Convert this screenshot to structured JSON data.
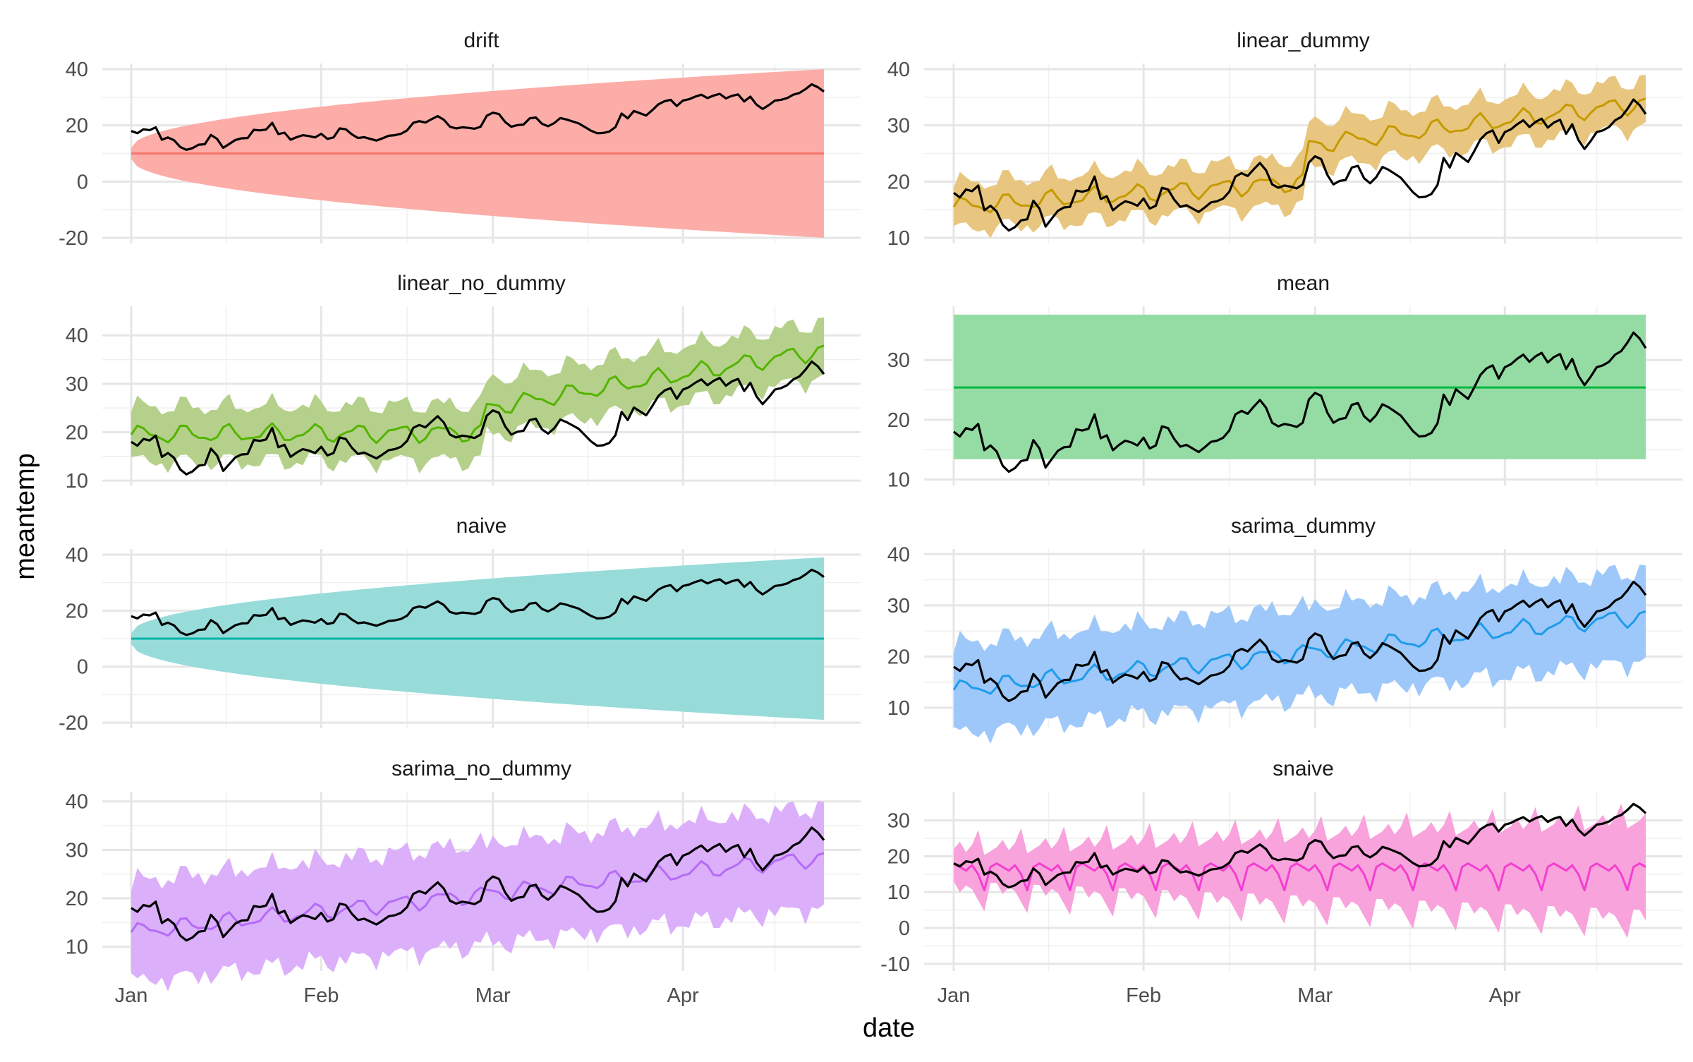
{
  "chart_data": {
    "type": "line",
    "facet_layout": "4 rows x 2 columns",
    "xlabel": "date",
    "ylabel": "meantemp",
    "x_tick_labels": [
      "Jan",
      "Feb",
      "Mar",
      "Apr"
    ],
    "x_ticks": [
      "2017-01-01",
      "2017-02-01",
      "2017-03-01",
      "2017-04-01"
    ],
    "xlim": [
      "2017-01-01",
      "2017-04-24"
    ],
    "actual_color": "#000000",
    "actual": [
      [
        "2017-01-01",
        18.0
      ],
      [
        "2017-01-02",
        17.2
      ],
      [
        "2017-01-03",
        18.6
      ],
      [
        "2017-01-04",
        18.3
      ],
      [
        "2017-01-05",
        19.3
      ],
      [
        "2017-01-06",
        14.9
      ],
      [
        "2017-01-07",
        15.7
      ],
      [
        "2017-01-08",
        14.7
      ],
      [
        "2017-01-09",
        12.3
      ],
      [
        "2017-01-10",
        11.3
      ],
      [
        "2017-01-11",
        11.9
      ],
      [
        "2017-01-12",
        13.1
      ],
      [
        "2017-01-13",
        13.3
      ],
      [
        "2017-01-14",
        16.6
      ],
      [
        "2017-01-15",
        15.2
      ],
      [
        "2017-01-16",
        12.0
      ],
      [
        "2017-01-17",
        13.4
      ],
      [
        "2017-01-18",
        14.8
      ],
      [
        "2017-01-19",
        15.4
      ],
      [
        "2017-01-20",
        15.5
      ],
      [
        "2017-01-21",
        18.4
      ],
      [
        "2017-01-22",
        18.2
      ],
      [
        "2017-01-23",
        18.5
      ],
      [
        "2017-01-24",
        20.9
      ],
      [
        "2017-01-25",
        16.9
      ],
      [
        "2017-01-26",
        17.4
      ],
      [
        "2017-01-27",
        14.9
      ],
      [
        "2017-01-28",
        15.8
      ],
      [
        "2017-01-29",
        16.5
      ],
      [
        "2017-01-30",
        16.2
      ],
      [
        "2017-01-31",
        15.7
      ],
      [
        "2017-02-01",
        17.0
      ],
      [
        "2017-02-02",
        15.2
      ],
      [
        "2017-02-03",
        15.7
      ],
      [
        "2017-02-04",
        18.9
      ],
      [
        "2017-02-05",
        18.6
      ],
      [
        "2017-02-06",
        16.8
      ],
      [
        "2017-02-07",
        15.5
      ],
      [
        "2017-02-08",
        15.8
      ],
      [
        "2017-02-09",
        15.2
      ],
      [
        "2017-02-10",
        14.6
      ],
      [
        "2017-02-11",
        15.4
      ],
      [
        "2017-02-12",
        16.3
      ],
      [
        "2017-02-13",
        16.5
      ],
      [
        "2017-02-14",
        17.0
      ],
      [
        "2017-02-15",
        18.2
      ],
      [
        "2017-02-16",
        20.9
      ],
      [
        "2017-02-17",
        21.5
      ],
      [
        "2017-02-18",
        21.0
      ],
      [
        "2017-02-19",
        22.2
      ],
      [
        "2017-02-20",
        23.3
      ],
      [
        "2017-02-21",
        22.0
      ],
      [
        "2017-02-22",
        19.5
      ],
      [
        "2017-02-23",
        18.9
      ],
      [
        "2017-02-24",
        19.3
      ],
      [
        "2017-02-25",
        19.1
      ],
      [
        "2017-02-26",
        18.8
      ],
      [
        "2017-02-27",
        19.5
      ],
      [
        "2017-02-28",
        23.4
      ],
      [
        "2017-03-01",
        24.5
      ],
      [
        "2017-03-02",
        24.0
      ],
      [
        "2017-03-03",
        21.2
      ],
      [
        "2017-03-04",
        19.5
      ],
      [
        "2017-03-05",
        20.1
      ],
      [
        "2017-03-06",
        20.3
      ],
      [
        "2017-03-07",
        22.5
      ],
      [
        "2017-03-08",
        22.8
      ],
      [
        "2017-03-09",
        20.6
      ],
      [
        "2017-03-10",
        19.7
      ],
      [
        "2017-03-11",
        20.8
      ],
      [
        "2017-03-12",
        22.6
      ],
      [
        "2017-03-13",
        22.1
      ],
      [
        "2017-03-14",
        21.4
      ],
      [
        "2017-03-15",
        20.7
      ],
      [
        "2017-03-16",
        19.4
      ],
      [
        "2017-03-17",
        18.1
      ],
      [
        "2017-03-18",
        17.2
      ],
      [
        "2017-03-19",
        17.3
      ],
      [
        "2017-03-20",
        17.8
      ],
      [
        "2017-03-21",
        19.4
      ],
      [
        "2017-03-22",
        24.2
      ],
      [
        "2017-03-23",
        22.5
      ],
      [
        "2017-03-24",
        25.1
      ],
      [
        "2017-03-25",
        24.3
      ],
      [
        "2017-03-26",
        23.5
      ],
      [
        "2017-03-27",
        25.4
      ],
      [
        "2017-03-28",
        27.5
      ],
      [
        "2017-03-29",
        28.6
      ],
      [
        "2017-03-30",
        29.1
      ],
      [
        "2017-03-31",
        26.9
      ],
      [
        "2017-04-01",
        28.8
      ],
      [
        "2017-04-02",
        29.3
      ],
      [
        "2017-04-03",
        30.2
      ],
      [
        "2017-04-04",
        30.9
      ],
      [
        "2017-04-05",
        29.7
      ],
      [
        "2017-04-06",
        30.6
      ],
      [
        "2017-04-07",
        31.2
      ],
      [
        "2017-04-08",
        29.6
      ],
      [
        "2017-04-09",
        30.5
      ],
      [
        "2017-04-10",
        31.0
      ],
      [
        "2017-04-11",
        28.5
      ],
      [
        "2017-04-12",
        30.2
      ],
      [
        "2017-04-13",
        27.4
      ],
      [
        "2017-04-14",
        25.8
      ],
      [
        "2017-04-15",
        27.2
      ],
      [
        "2017-04-16",
        28.8
      ],
      [
        "2017-04-17",
        29.1
      ],
      [
        "2017-04-18",
        29.7
      ],
      [
        "2017-04-19",
        30.9
      ],
      [
        "2017-04-20",
        31.5
      ],
      [
        "2017-04-21",
        32.9
      ],
      [
        "2017-04-22",
        34.6
      ],
      [
        "2017-04-23",
        33.6
      ],
      [
        "2017-04-24",
        32.0
      ]
    ],
    "panels": [
      {
        "name": "drift",
        "color": "#F8766D",
        "band_color": "#FCADA7",
        "ylim": [
          -22,
          42
        ],
        "y_ticks": [
          -20,
          0,
          20,
          40
        ],
        "forecast": {
          "kind": "constant",
          "value": 10.0
        },
        "band": {
          "kind": "funnel",
          "start": [
            8,
            12
          ],
          "end": [
            -20,
            40
          ]
        }
      },
      {
        "name": "linear_dummy",
        "color": "#C49A00",
        "band_color": "#E8C67F",
        "ylim": [
          9,
          41
        ],
        "y_ticks": [
          10,
          20,
          30,
          40
        ],
        "forecast": {
          "kind": "trend",
          "points": [
            [
              "2017-01-01",
              15.5
            ],
            [
              "2017-02-27",
              20.0
            ],
            [
              "2017-02-28",
              26.5
            ],
            [
              "2017-04-24",
              34.0
            ]
          ],
          "noise": 1.3,
          "period": 7
        },
        "band": {
          "kind": "offset",
          "half_width": 4.0
        }
      },
      {
        "name": "linear_no_dummy",
        "color": "#53B400",
        "band_color": "#B5D08A",
        "ylim": [
          9,
          46
        ],
        "y_ticks": [
          10,
          20,
          30,
          40
        ],
        "forecast": {
          "kind": "trend",
          "points": [
            [
              "2017-01-01",
              19.5
            ],
            [
              "2017-02-27",
              20.0
            ],
            [
              "2017-02-28",
              25.0
            ],
            [
              "2017-04-24",
              37.0
            ]
          ],
          "noise": 1.5,
          "period": 7
        },
        "band": {
          "kind": "offset",
          "half_width": 5.5
        }
      },
      {
        "name": "mean",
        "color": "#00B840",
        "band_color": "#94DCA4",
        "ylim": [
          9,
          39
        ],
        "y_ticks": [
          10,
          20,
          30
        ],
        "forecast": {
          "kind": "constant",
          "value": 25.4
        },
        "band": {
          "kind": "flat",
          "lower": 13.4,
          "upper": 37.6
        }
      },
      {
        "name": "naive",
        "color": "#00B3A7",
        "band_color": "#98DCDA",
        "ylim": [
          -22,
          42
        ],
        "y_ticks": [
          -20,
          0,
          20,
          40
        ],
        "forecast": {
          "kind": "constant",
          "value": 10.0
        },
        "band": {
          "kind": "funnel",
          "start": [
            8,
            12
          ],
          "end": [
            -19,
            39
          ]
        }
      },
      {
        "name": "sarima_dummy",
        "color": "#1E9BEB",
        "band_color": "#9DC8F9",
        "ylim": [
          6,
          41
        ],
        "y_ticks": [
          10,
          20,
          30,
          40
        ],
        "forecast": {
          "kind": "trend",
          "points": [
            [
              "2017-01-01",
              13.5
            ],
            [
              "2017-04-24",
              28.0
            ]
          ],
          "noise": 1.4,
          "period": 7
        },
        "band": {
          "kind": "offset",
          "half_width": 8.5
        }
      },
      {
        "name": "sarima_no_dummy",
        "color": "#B36CF5",
        "band_color": "#DCAFFB",
        "ylim": [
          5,
          42
        ],
        "y_ticks": [
          10,
          20,
          30,
          40
        ],
        "forecast": {
          "kind": "trend",
          "points": [
            [
              "2017-01-01",
              13.0
            ],
            [
              "2017-04-24",
              28.5
            ]
          ],
          "noise": 1.4,
          "period": 7
        },
        "band": {
          "kind": "offset",
          "half_width": 10.0
        }
      },
      {
        "name": "snaive",
        "color": "#F33FD0",
        "band_color": "#F8A3DC",
        "ylim": [
          -12,
          38
        ],
        "y_ticks": [
          -10,
          0,
          10,
          20,
          30
        ],
        "forecast": {
          "kind": "seasonal",
          "pattern": [
            18,
            17,
            16,
            17.5,
            15,
            10.5,
            17
          ]
        },
        "band": {
          "kind": "seasonal",
          "pattern_upper": [
            22,
            24,
            21,
            23,
            27,
            20,
            21
          ],
          "pattern_lower": [
            13,
            10,
            12,
            11,
            8,
            5,
            13
          ],
          "widen": 1.0
        }
      }
    ]
  }
}
